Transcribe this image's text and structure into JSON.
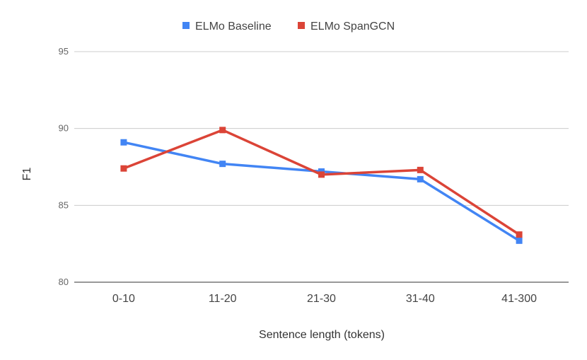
{
  "chart_data": {
    "type": "line",
    "categories": [
      "0-10",
      "11-20",
      "21-30",
      "31-40",
      "41-300"
    ],
    "series": [
      {
        "name": "ELMo Baseline",
        "color": "#4285f4",
        "values": [
          89.1,
          87.7,
          87.2,
          86.7,
          82.7
        ]
      },
      {
        "name": "ELMo SpanGCN",
        "color": "#db4437",
        "values": [
          87.4,
          89.9,
          87.0,
          87.3,
          83.1
        ]
      }
    ],
    "xlabel": "Sentence length (tokens)",
    "ylabel": "F1",
    "ylim": [
      80,
      95
    ],
    "yticks": [
      "80",
      "85",
      "90",
      "95"
    ],
    "grid": true,
    "legend_position": "top-center"
  }
}
